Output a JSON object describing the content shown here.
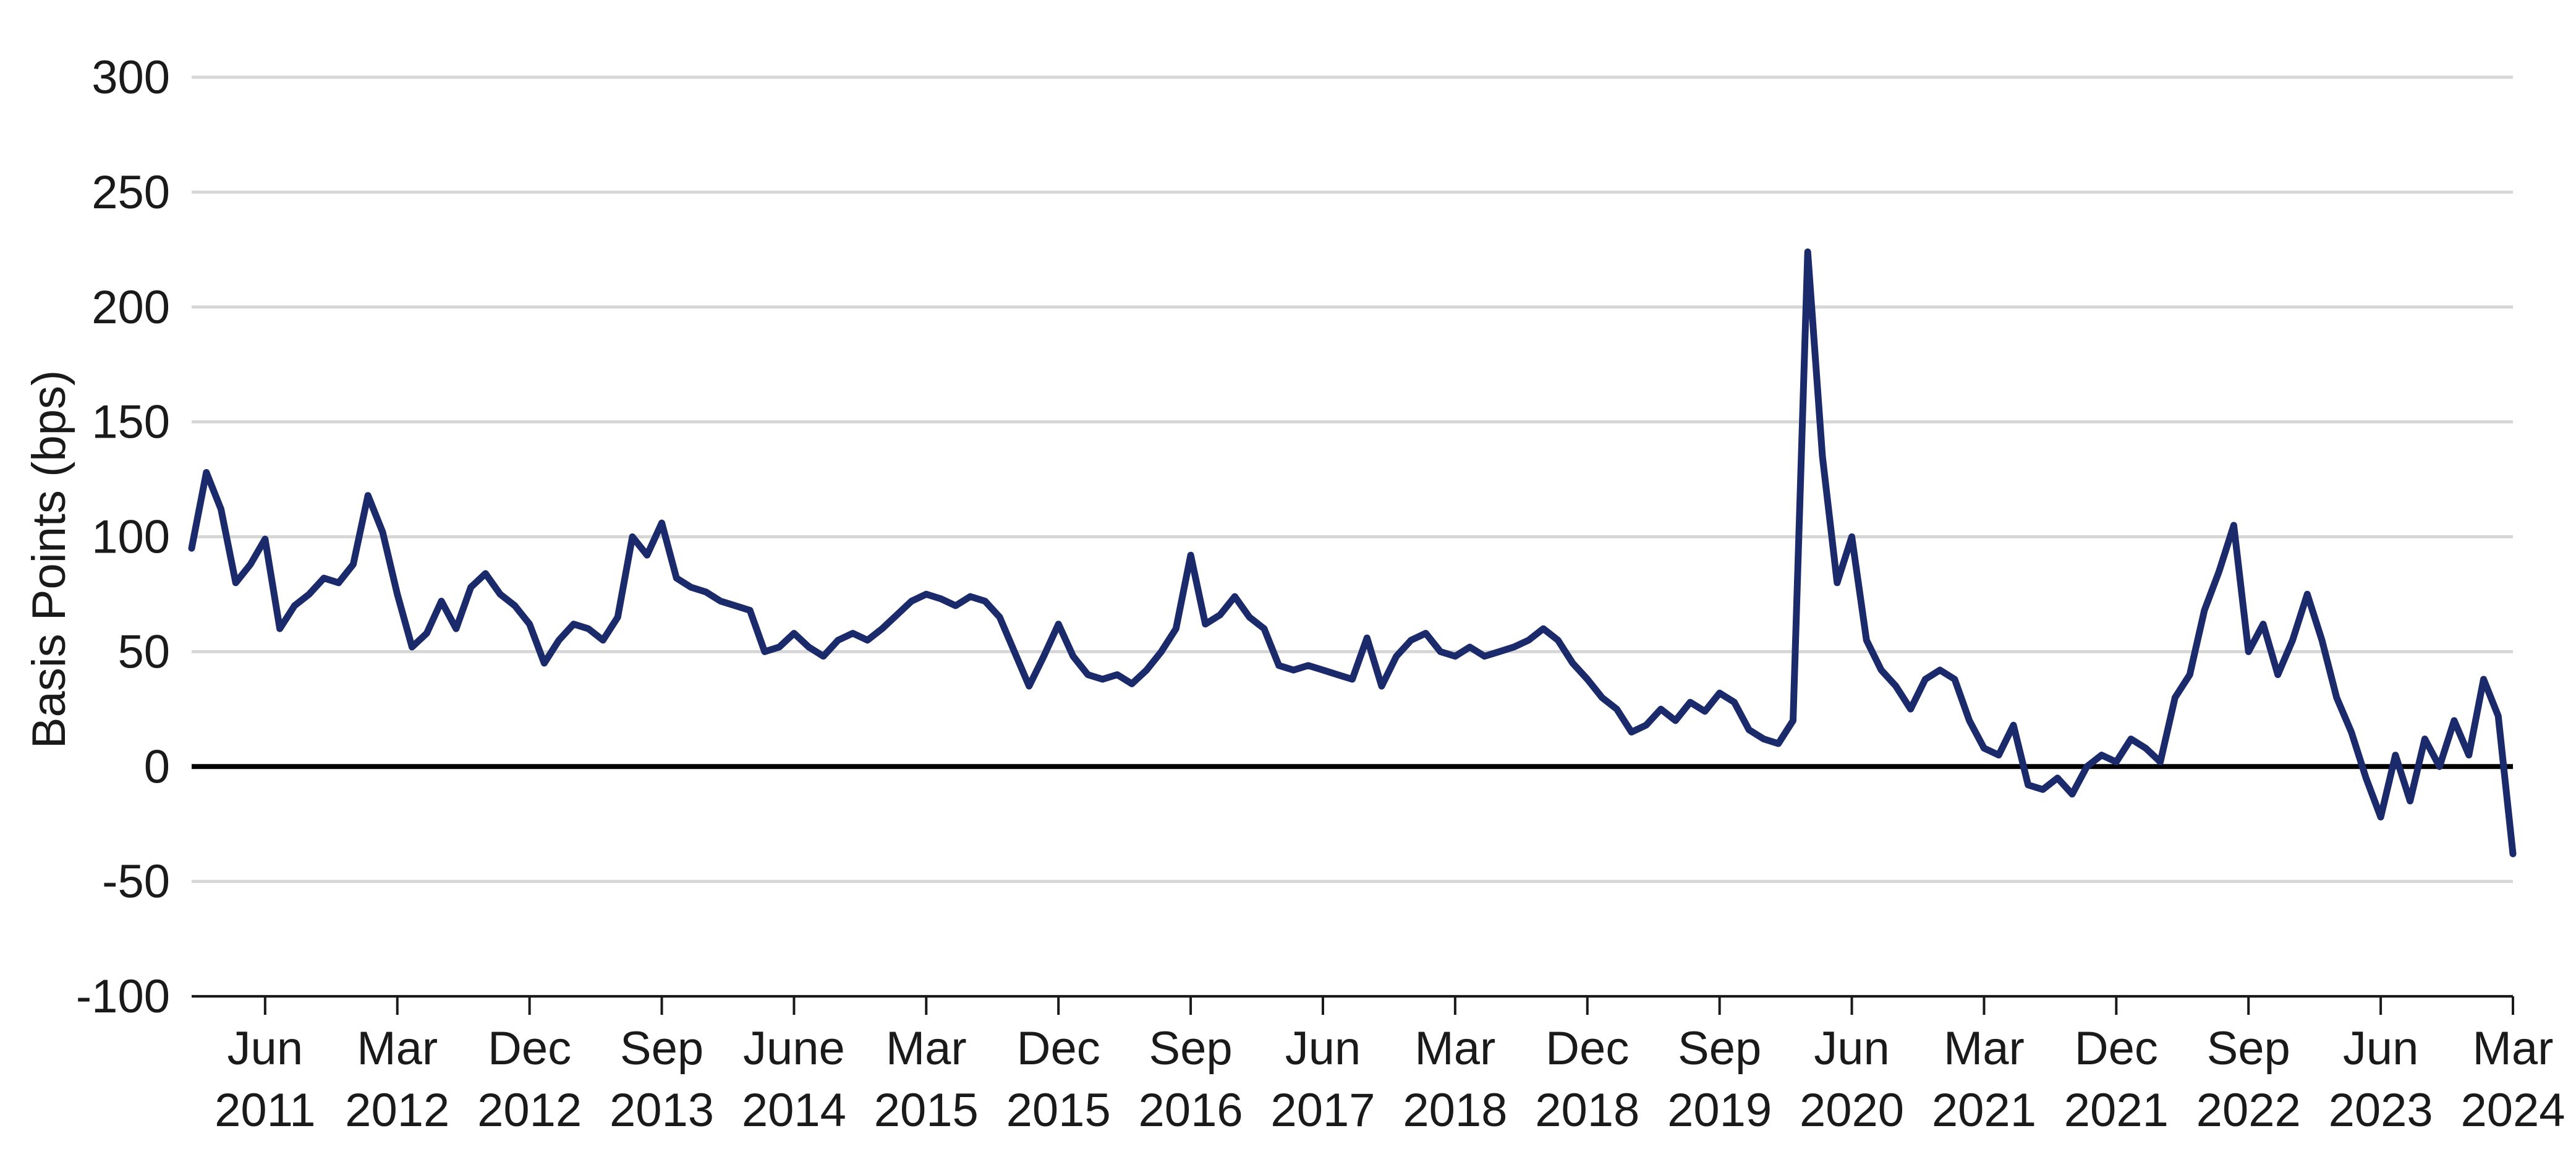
{
  "chart_data": {
    "type": "line",
    "title": "",
    "xlabel": "",
    "ylabel": "Basis Points (bps)",
    "ylim": [
      -100,
      300
    ],
    "yticks": [
      300,
      250,
      200,
      150,
      100,
      50,
      0,
      -50,
      -100
    ],
    "grid": true,
    "legend": "none",
    "zero_line": true,
    "x_range": [
      "2011-01",
      "2024-03"
    ],
    "x_ticks": [
      {
        "date": "2011-06",
        "line1": "Jun",
        "line2": "2011"
      },
      {
        "date": "2012-03",
        "line1": "Mar",
        "line2": "2012"
      },
      {
        "date": "2012-12",
        "line1": "Dec",
        "line2": "2012"
      },
      {
        "date": "2013-09",
        "line1": "Sep",
        "line2": "2013"
      },
      {
        "date": "2014-06",
        "line1": "June",
        "line2": "2014"
      },
      {
        "date": "2015-03",
        "line1": "Mar",
        "line2": "2015"
      },
      {
        "date": "2015-12",
        "line1": "Dec",
        "line2": "2015"
      },
      {
        "date": "2016-09",
        "line1": "Sep",
        "line2": "2016"
      },
      {
        "date": "2017-06",
        "line1": "Jun",
        "line2": "2017"
      },
      {
        "date": "2018-03",
        "line1": "Mar",
        "line2": "2018"
      },
      {
        "date": "2018-12",
        "line1": "Dec",
        "line2": "2018"
      },
      {
        "date": "2019-09",
        "line1": "Sep",
        "line2": "2019"
      },
      {
        "date": "2020-06",
        "line1": "Jun",
        "line2": "2020"
      },
      {
        "date": "2021-03",
        "line1": "Mar",
        "line2": "2021"
      },
      {
        "date": "2021-12",
        "line1": "Dec",
        "line2": "2021"
      },
      {
        "date": "2022-09",
        "line1": "Sep",
        "line2": "2022"
      },
      {
        "date": "2023-06",
        "line1": "Jun",
        "line2": "2023"
      },
      {
        "date": "2024-03",
        "line1": "Mar",
        "line2": "2024"
      }
    ],
    "series": [
      {
        "color": "#1b2a6b",
        "points": [
          [
            "2011-01",
            95
          ],
          [
            "2011-02",
            128
          ],
          [
            "2011-03",
            112
          ],
          [
            "2011-04",
            80
          ],
          [
            "2011-05",
            88
          ],
          [
            "2011-06",
            99
          ],
          [
            "2011-07",
            60
          ],
          [
            "2011-08",
            70
          ],
          [
            "2011-09",
            75
          ],
          [
            "2011-10",
            82
          ],
          [
            "2011-11",
            80
          ],
          [
            "2011-12",
            88
          ],
          [
            "2012-01",
            118
          ],
          [
            "2012-02",
            102
          ],
          [
            "2012-03",
            75
          ],
          [
            "2012-04",
            52
          ],
          [
            "2012-05",
            58
          ],
          [
            "2012-06",
            72
          ],
          [
            "2012-07",
            60
          ],
          [
            "2012-08",
            78
          ],
          [
            "2012-09",
            84
          ],
          [
            "2012-10",
            75
          ],
          [
            "2012-11",
            70
          ],
          [
            "2012-12",
            62
          ],
          [
            "2013-01",
            45
          ],
          [
            "2013-02",
            55
          ],
          [
            "2013-03",
            62
          ],
          [
            "2013-04",
            60
          ],
          [
            "2013-05",
            55
          ],
          [
            "2013-06",
            65
          ],
          [
            "2013-07",
            100
          ],
          [
            "2013-08",
            92
          ],
          [
            "2013-09",
            106
          ],
          [
            "2013-10",
            82
          ],
          [
            "2013-11",
            78
          ],
          [
            "2013-12",
            76
          ],
          [
            "2014-01",
            72
          ],
          [
            "2014-02",
            70
          ],
          [
            "2014-03",
            68
          ],
          [
            "2014-04",
            50
          ],
          [
            "2014-05",
            52
          ],
          [
            "2014-06",
            58
          ],
          [
            "2014-07",
            52
          ],
          [
            "2014-08",
            48
          ],
          [
            "2014-09",
            55
          ],
          [
            "2014-10",
            58
          ],
          [
            "2014-11",
            55
          ],
          [
            "2014-12",
            60
          ],
          [
            "2015-01",
            66
          ],
          [
            "2015-02",
            72
          ],
          [
            "2015-03",
            75
          ],
          [
            "2015-04",
            73
          ],
          [
            "2015-05",
            70
          ],
          [
            "2015-06",
            74
          ],
          [
            "2015-07",
            72
          ],
          [
            "2015-08",
            65
          ],
          [
            "2015-09",
            50
          ],
          [
            "2015-10",
            35
          ],
          [
            "2015-11",
            48
          ],
          [
            "2015-12",
            62
          ],
          [
            "2016-01",
            48
          ],
          [
            "2016-02",
            40
          ],
          [
            "2016-03",
            38
          ],
          [
            "2016-04",
            40
          ],
          [
            "2016-05",
            36
          ],
          [
            "2016-06",
            42
          ],
          [
            "2016-07",
            50
          ],
          [
            "2016-08",
            60
          ],
          [
            "2016-09",
            92
          ],
          [
            "2016-10",
            62
          ],
          [
            "2016-11",
            66
          ],
          [
            "2016-12",
            74
          ],
          [
            "2017-01",
            65
          ],
          [
            "2017-02",
            60
          ],
          [
            "2017-03",
            44
          ],
          [
            "2017-04",
            42
          ],
          [
            "2017-05",
            44
          ],
          [
            "2017-06",
            42
          ],
          [
            "2017-07",
            40
          ],
          [
            "2017-08",
            38
          ],
          [
            "2017-09",
            56
          ],
          [
            "2017-10",
            35
          ],
          [
            "2017-11",
            48
          ],
          [
            "2017-12",
            55
          ],
          [
            "2018-01",
            58
          ],
          [
            "2018-02",
            50
          ],
          [
            "2018-03",
            48
          ],
          [
            "2018-04",
            52
          ],
          [
            "2018-05",
            48
          ],
          [
            "2018-06",
            50
          ],
          [
            "2018-07",
            52
          ],
          [
            "2018-08",
            55
          ],
          [
            "2018-09",
            60
          ],
          [
            "2018-10",
            55
          ],
          [
            "2018-11",
            45
          ],
          [
            "2018-12",
            38
          ],
          [
            "2019-01",
            30
          ],
          [
            "2019-02",
            25
          ],
          [
            "2019-03",
            15
          ],
          [
            "2019-04",
            18
          ],
          [
            "2019-05",
            25
          ],
          [
            "2019-06",
            20
          ],
          [
            "2019-07",
            28
          ],
          [
            "2019-08",
            24
          ],
          [
            "2019-09",
            32
          ],
          [
            "2019-10",
            28
          ],
          [
            "2019-11",
            16
          ],
          [
            "2019-12",
            12
          ],
          [
            "2020-01",
            10
          ],
          [
            "2020-02",
            20
          ],
          [
            "2020-03",
            224
          ],
          [
            "2020-04",
            135
          ],
          [
            "2020-05",
            80
          ],
          [
            "2020-06",
            100
          ],
          [
            "2020-07",
            55
          ],
          [
            "2020-08",
            42
          ],
          [
            "2020-09",
            35
          ],
          [
            "2020-10",
            25
          ],
          [
            "2020-11",
            38
          ],
          [
            "2020-12",
            42
          ],
          [
            "2021-01",
            38
          ],
          [
            "2021-02",
            20
          ],
          [
            "2021-03",
            8
          ],
          [
            "2021-04",
            5
          ],
          [
            "2021-05",
            18
          ],
          [
            "2021-06",
            -8
          ],
          [
            "2021-07",
            -10
          ],
          [
            "2021-08",
            -5
          ],
          [
            "2021-09",
            -12
          ],
          [
            "2021-10",
            0
          ],
          [
            "2021-11",
            5
          ],
          [
            "2021-12",
            2
          ],
          [
            "2022-01",
            12
          ],
          [
            "2022-02",
            8
          ],
          [
            "2022-03",
            2
          ],
          [
            "2022-04",
            30
          ],
          [
            "2022-05",
            40
          ],
          [
            "2022-06",
            68
          ],
          [
            "2022-07",
            85
          ],
          [
            "2022-08",
            105
          ],
          [
            "2022-09",
            50
          ],
          [
            "2022-10",
            62
          ],
          [
            "2022-11",
            40
          ],
          [
            "2022-12",
            55
          ],
          [
            "2023-01",
            75
          ],
          [
            "2023-02",
            55
          ],
          [
            "2023-03",
            30
          ],
          [
            "2023-04",
            15
          ],
          [
            "2023-05",
            -5
          ],
          [
            "2023-06",
            -22
          ],
          [
            "2023-07",
            5
          ],
          [
            "2023-08",
            -15
          ],
          [
            "2023-09",
            12
          ],
          [
            "2023-10",
            0
          ],
          [
            "2023-11",
            20
          ],
          [
            "2023-12",
            5
          ],
          [
            "2024-01",
            38
          ],
          [
            "2024-02",
            22
          ],
          [
            "2024-03",
            -38
          ]
        ]
      }
    ]
  }
}
